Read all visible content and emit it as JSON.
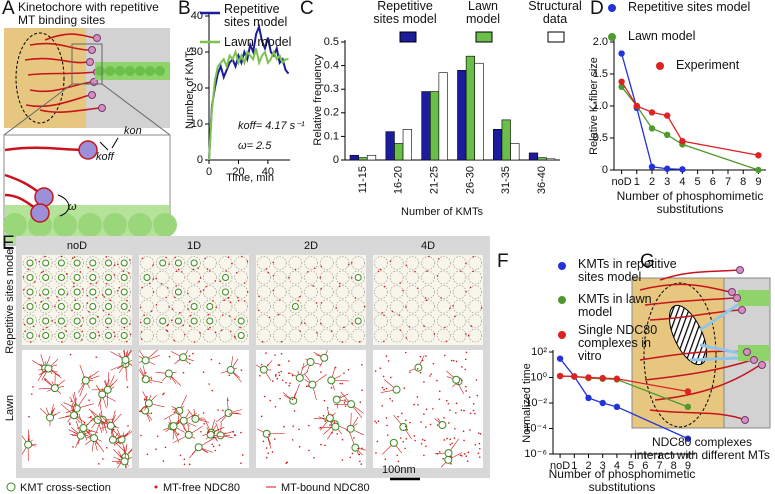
{
  "panel_A": {
    "letter": "A",
    "title": "Kinetochore with repetitive MT binding sites",
    "labels": [
      "koff",
      "kon",
      "ω"
    ]
  },
  "panel_E": {
    "letter": "E",
    "columns": [
      "noD",
      "1D",
      "2D",
      "4D"
    ],
    "rows": [
      "Repetitive sites model",
      "Lawn"
    ],
    "legend": [
      "KMT cross-section",
      "MT-free NDC80",
      "MT-bound NDC80"
    ],
    "scale_bar": "100nm"
  },
  "panel_G": {
    "letter": "G",
    "caption": "NDC80 complexes interact with different MTs"
  },
  "chart_data": [
    {
      "panel": "B",
      "type": "line",
      "xlabel": "Time, min",
      "ylabel": "Number of KMTs",
      "x": [
        0,
        2,
        4,
        6,
        8,
        10,
        12,
        14,
        16,
        18,
        20,
        22,
        24,
        26,
        28,
        30,
        32,
        34,
        36,
        38,
        40,
        42,
        44,
        46,
        48,
        50,
        52,
        54
      ],
      "xlim": [
        0,
        55
      ],
      "xticks": [
        0,
        20,
        40
      ],
      "ylim": [
        0,
        40
      ],
      "yticks": [
        0,
        10,
        20,
        30,
        40
      ],
      "series": [
        {
          "name": "Repetitive sites model",
          "color": "#1c1c9c",
          "values": [
            0,
            15,
            20,
            24,
            26,
            23,
            25,
            27,
            28,
            26,
            29,
            27,
            30,
            28,
            32,
            30,
            35,
            37,
            33,
            31,
            34,
            30,
            29,
            31,
            27,
            28,
            25,
            24
          ]
        },
        {
          "name": "Lawn model",
          "color": "#7cc34d",
          "values": [
            0,
            14,
            22,
            26,
            27,
            28,
            26,
            29,
            28,
            30,
            27,
            29,
            27,
            30,
            29,
            28,
            31,
            27,
            29,
            30,
            27,
            28,
            30,
            28,
            29,
            27,
            28,
            28
          ]
        }
      ],
      "annotations": [
        "koff= 4.17 s⁻¹",
        "ω= 2.5"
      ]
    },
    {
      "panel": "C",
      "type": "bar",
      "xlabel": "Number of KMTs",
      "ylabel": "Relative frequency",
      "categories": [
        "11-15",
        "16-20",
        "21-25",
        "26-30",
        "31-35",
        "36-40"
      ],
      "ylim": [
        0,
        0.5
      ],
      "yticks": [
        0,
        0.1,
        0.2,
        0.3,
        0.4,
        0.5
      ],
      "series": [
        {
          "name": "Repetitive sites model",
          "color": "#1c1c9c",
          "values": [
            0.02,
            0.12,
            0.29,
            0.38,
            0.13,
            0.03
          ]
        },
        {
          "name": "Lawn model",
          "color": "#6abf4b",
          "values": [
            0.01,
            0.07,
            0.29,
            0.44,
            0.17,
            0.01
          ]
        },
        {
          "name": "Structural data",
          "color": "#ffffff",
          "values": [
            0.02,
            0.13,
            0.37,
            0.41,
            0.07,
            0.005
          ]
        }
      ]
    },
    {
      "panel": "D",
      "type": "line",
      "markers": true,
      "xlabel": "Number of phosphomimetic substitutions",
      "ylabel": "Relative K-fiber size",
      "x": [
        0,
        1,
        2,
        3,
        4,
        9
      ],
      "xlim": [
        -0.5,
        9.5
      ],
      "xticks": [
        {
          "value": 0,
          "label": "noD"
        },
        1,
        2,
        3,
        4,
        5,
        6,
        7,
        8,
        9
      ],
      "ylim": [
        0,
        2
      ],
      "yticks": [
        0,
        0.5,
        {
          "value": 1,
          "label": "1.0"
        },
        1.5,
        {
          "value": 2,
          "label": "2.0"
        }
      ],
      "series": [
        {
          "name": "Repetitive sites model",
          "color": "#2233dd",
          "values": [
            1.82,
            0.97,
            0.05,
            0.02,
            0.01,
            null
          ]
        },
        {
          "name": "Lawn model",
          "color": "#4e9a2e",
          "values": [
            1.3,
            1.0,
            0.65,
            0.55,
            0.4,
            0.0
          ]
        },
        {
          "name": "Experiment",
          "color": "#dd2222",
          "values": [
            1.38,
            1.0,
            0.9,
            0.85,
            0.45,
            0.23
          ]
        }
      ]
    },
    {
      "panel": "F",
      "type": "line",
      "markers": true,
      "log": true,
      "xlabel": "Number of phosphomimetic substitutions",
      "ylabel": "Normalized time",
      "x": [
        0,
        1,
        2,
        3,
        4,
        9
      ],
      "xlim": [
        -0.5,
        9.5
      ],
      "xticks": [
        {
          "value": 0,
          "label": "noD"
        },
        1,
        2,
        3,
        4,
        5,
        6,
        7,
        8,
        9
      ],
      "ylim": [
        1e-06,
        100
      ],
      "yticks": [
        {
          "value": 100,
          "label": "10²"
        },
        {
          "value": 1,
          "label": "10⁰"
        },
        {
          "value": 0.01,
          "label": "10⁻²"
        },
        {
          "value": 0.0001,
          "label": "10⁻⁴"
        },
        {
          "value": 1e-06,
          "label": "10⁻⁶"
        }
      ],
      "series": [
        {
          "name": "KMTs in repetitive sites model",
          "color": "#2233dd",
          "values": [
            30,
            1.2,
            0.025,
            0.01,
            0.005,
            1.6e-05
          ]
        },
        {
          "name": "KMTs in lawn model",
          "color": "#4e9a2e",
          "values": [
            1.3,
            1.2,
            0.9,
            0.8,
            0.7,
            0.005
          ]
        },
        {
          "name": "Single NDC80 complexes in vitro",
          "color": "#dd2222",
          "values": [
            1.3,
            1.2,
            1.0,
            0.9,
            0.8,
            0.08
          ]
        }
      ]
    }
  ]
}
